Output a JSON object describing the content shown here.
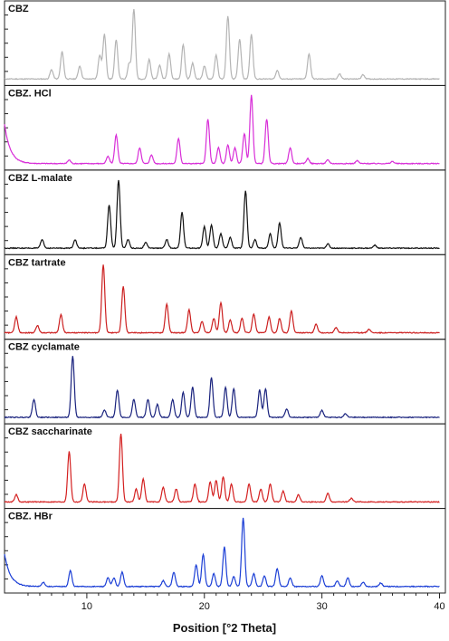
{
  "chart_data": {
    "type": "line",
    "xlabel": "Position [°2 Theta]",
    "xlim": [
      3,
      40.5
    ],
    "xticks": [
      10,
      20,
      30,
      40
    ],
    "grid": false,
    "layout": "stacked panels, shared x-axis",
    "panels": [
      {
        "name": "CBZ",
        "color": "#b4b4b4",
        "peaks": [
          [
            7.0,
            0.13
          ],
          [
            7.9,
            0.38
          ],
          [
            9.4,
            0.18
          ],
          [
            11.1,
            0.33
          ],
          [
            11.5,
            0.62
          ],
          [
            12.5,
            0.55
          ],
          [
            13.6,
            0.22
          ],
          [
            14.0,
            0.97
          ],
          [
            15.3,
            0.27
          ],
          [
            16.2,
            0.19
          ],
          [
            17.0,
            0.35
          ],
          [
            18.2,
            0.48
          ],
          [
            19.0,
            0.22
          ],
          [
            20.0,
            0.18
          ],
          [
            21.0,
            0.33
          ],
          [
            22.0,
            0.88
          ],
          [
            23.0,
            0.55
          ],
          [
            24.0,
            0.62
          ],
          [
            26.2,
            0.12
          ],
          [
            28.9,
            0.35
          ],
          [
            31.5,
            0.07
          ],
          [
            33.5,
            0.06
          ]
        ]
      },
      {
        "name": "CBZ. HCl",
        "color": "#d82ed8",
        "baseline_start": 0.55,
        "peaks": [
          [
            8.5,
            0.05
          ],
          [
            11.8,
            0.1
          ],
          [
            12.5,
            0.4
          ],
          [
            14.5,
            0.22
          ],
          [
            15.5,
            0.12
          ],
          [
            17.8,
            0.35
          ],
          [
            20.3,
            0.62
          ],
          [
            21.2,
            0.22
          ],
          [
            22.0,
            0.26
          ],
          [
            22.6,
            0.22
          ],
          [
            23.4,
            0.42
          ],
          [
            24.0,
            0.95
          ],
          [
            25.3,
            0.62
          ],
          [
            27.3,
            0.22
          ],
          [
            28.8,
            0.07
          ],
          [
            30.5,
            0.05
          ],
          [
            33.0,
            0.04
          ],
          [
            36.0,
            0.03
          ]
        ]
      },
      {
        "name": "CBZ L-malate",
        "color": "#111111",
        "peaks": [
          [
            6.2,
            0.12
          ],
          [
            9.0,
            0.12
          ],
          [
            11.9,
            0.6
          ],
          [
            12.7,
            0.95
          ],
          [
            13.5,
            0.12
          ],
          [
            15.0,
            0.08
          ],
          [
            16.8,
            0.12
          ],
          [
            18.1,
            0.5
          ],
          [
            20.0,
            0.3
          ],
          [
            20.6,
            0.32
          ],
          [
            21.4,
            0.2
          ],
          [
            22.2,
            0.15
          ],
          [
            23.5,
            0.8
          ],
          [
            24.3,
            0.12
          ],
          [
            25.6,
            0.2
          ],
          [
            26.4,
            0.35
          ],
          [
            28.2,
            0.15
          ],
          [
            30.5,
            0.06
          ],
          [
            34.5,
            0.04
          ]
        ]
      },
      {
        "name": "CBZ tartrate",
        "color": "#cc2020",
        "peaks": [
          [
            4.0,
            0.22
          ],
          [
            5.8,
            0.1
          ],
          [
            7.8,
            0.25
          ],
          [
            11.4,
            0.95
          ],
          [
            13.1,
            0.65
          ],
          [
            16.8,
            0.4
          ],
          [
            18.7,
            0.32
          ],
          [
            19.8,
            0.16
          ],
          [
            20.8,
            0.2
          ],
          [
            21.4,
            0.42
          ],
          [
            22.2,
            0.18
          ],
          [
            23.2,
            0.2
          ],
          [
            24.2,
            0.26
          ],
          [
            25.5,
            0.22
          ],
          [
            26.4,
            0.2
          ],
          [
            27.4,
            0.3
          ],
          [
            29.5,
            0.12
          ],
          [
            31.2,
            0.07
          ],
          [
            34.0,
            0.05
          ]
        ]
      },
      {
        "name": "CBZ cyclamate",
        "color": "#1a237e",
        "peaks": [
          [
            5.5,
            0.25
          ],
          [
            8.8,
            0.85
          ],
          [
            11.5,
            0.1
          ],
          [
            12.6,
            0.38
          ],
          [
            14.0,
            0.25
          ],
          [
            15.2,
            0.25
          ],
          [
            16.0,
            0.18
          ],
          [
            17.3,
            0.25
          ],
          [
            18.2,
            0.35
          ],
          [
            19.0,
            0.42
          ],
          [
            20.6,
            0.55
          ],
          [
            21.8,
            0.42
          ],
          [
            22.5,
            0.4
          ],
          [
            24.7,
            0.38
          ],
          [
            25.2,
            0.4
          ],
          [
            27.0,
            0.12
          ],
          [
            30.0,
            0.1
          ],
          [
            32.0,
            0.05
          ]
        ]
      },
      {
        "name": "CBZ saccharinate",
        "color": "#d42020",
        "peaks": [
          [
            4.0,
            0.1
          ],
          [
            8.5,
            0.7
          ],
          [
            9.8,
            0.25
          ],
          [
            12.9,
            0.95
          ],
          [
            14.2,
            0.18
          ],
          [
            14.8,
            0.32
          ],
          [
            16.5,
            0.2
          ],
          [
            17.6,
            0.18
          ],
          [
            19.2,
            0.25
          ],
          [
            20.5,
            0.28
          ],
          [
            21.0,
            0.3
          ],
          [
            21.6,
            0.35
          ],
          [
            22.3,
            0.25
          ],
          [
            23.8,
            0.25
          ],
          [
            24.8,
            0.18
          ],
          [
            25.6,
            0.25
          ],
          [
            26.7,
            0.15
          ],
          [
            28.0,
            0.1
          ],
          [
            30.5,
            0.12
          ],
          [
            32.5,
            0.05
          ]
        ]
      },
      {
        "name": "CBZ. HBr",
        "color": "#1c3fd6",
        "baseline_start": 0.45,
        "peaks": [
          [
            6.3,
            0.06
          ],
          [
            8.6,
            0.22
          ],
          [
            11.8,
            0.12
          ],
          [
            12.3,
            0.12
          ],
          [
            13.0,
            0.2
          ],
          [
            16.5,
            0.08
          ],
          [
            17.4,
            0.2
          ],
          [
            19.3,
            0.3
          ],
          [
            19.9,
            0.45
          ],
          [
            20.8,
            0.18
          ],
          [
            21.7,
            0.55
          ],
          [
            22.5,
            0.14
          ],
          [
            23.3,
            0.95
          ],
          [
            24.2,
            0.18
          ],
          [
            25.1,
            0.15
          ],
          [
            26.2,
            0.25
          ],
          [
            27.3,
            0.12
          ],
          [
            30.0,
            0.15
          ],
          [
            31.3,
            0.08
          ],
          [
            32.2,
            0.12
          ],
          [
            33.5,
            0.06
          ],
          [
            35.0,
            0.05
          ]
        ]
      }
    ]
  }
}
